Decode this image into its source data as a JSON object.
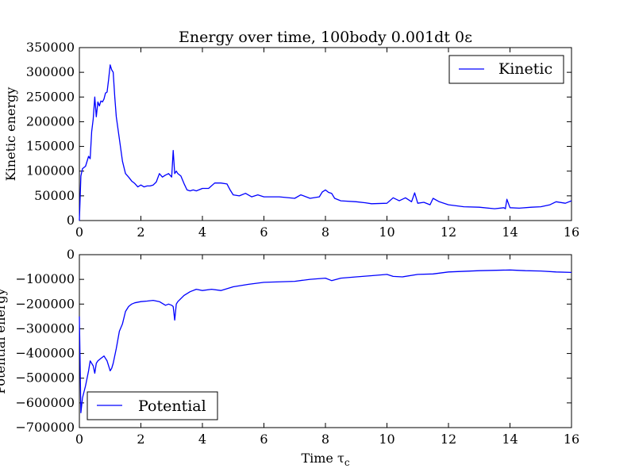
{
  "chart_data": [
    {
      "type": "line",
      "title": "Energy over time, 100body 0.001dt 0ε",
      "xlabel": "",
      "ylabel": "Kinetic energy",
      "xlim": [
        0,
        16
      ],
      "ylim": [
        0,
        350000
      ],
      "x_ticks": [
        "0",
        "2",
        "4",
        "6",
        "8",
        "10",
        "12",
        "14",
        "16"
      ],
      "y_ticks": [
        "0",
        "50000",
        "100000",
        "150000",
        "200000",
        "250000",
        "300000",
        "350000"
      ],
      "legend_position": "top-right",
      "color": "#0000ff",
      "series": [
        {
          "name": "Kinetic",
          "x": [
            0,
            0.05,
            0.1,
            0.2,
            0.3,
            0.35,
            0.4,
            0.45,
            0.5,
            0.55,
            0.6,
            0.65,
            0.7,
            0.75,
            0.8,
            0.85,
            0.9,
            0.95,
            1.0,
            1.05,
            1.1,
            1.15,
            1.2,
            1.3,
            1.4,
            1.5,
            1.6,
            1.7,
            1.8,
            1.9,
            2.0,
            2.1,
            2.2,
            2.3,
            2.4,
            2.5,
            2.6,
            2.7,
            2.8,
            2.9,
            3.0,
            3.05,
            3.1,
            3.15,
            3.2,
            3.3,
            3.4,
            3.5,
            3.6,
            3.7,
            3.8,
            4.0,
            4.2,
            4.4,
            4.6,
            4.8,
            4.9,
            5.0,
            5.2,
            5.4,
            5.6,
            5.8,
            6.0,
            6.5,
            7.0,
            7.2,
            7.5,
            7.8,
            7.9,
            8.0,
            8.1,
            8.2,
            8.3,
            8.5,
            9.0,
            9.3,
            9.5,
            10.0,
            10.2,
            10.4,
            10.6,
            10.8,
            10.9,
            11.0,
            11.2,
            11.4,
            11.5,
            11.7,
            12.0,
            12.5,
            13.0,
            13.5,
            13.8,
            13.85,
            13.9,
            14.0,
            14.3,
            14.7,
            15.0,
            15.3,
            15.5,
            15.8,
            16.0
          ],
          "y": [
            0,
            90000,
            105000,
            110000,
            130000,
            125000,
            180000,
            205000,
            250000,
            210000,
            240000,
            232000,
            242000,
            240000,
            246000,
            258000,
            260000,
            285000,
            315000,
            305000,
            300000,
            250000,
            210000,
            165000,
            120000,
            95000,
            88000,
            80000,
            75000,
            68000,
            72000,
            68000,
            70000,
            70000,
            72000,
            78000,
            95000,
            88000,
            92000,
            95000,
            88000,
            142000,
            95000,
            100000,
            95000,
            90000,
            75000,
            62000,
            60000,
            62000,
            60000,
            65000,
            65000,
            76000,
            76000,
            74000,
            62000,
            52000,
            50000,
            55000,
            48000,
            52000,
            48000,
            48000,
            45000,
            52000,
            45000,
            48000,
            58000,
            62000,
            57000,
            55000,
            45000,
            40000,
            38000,
            36000,
            34000,
            35000,
            46000,
            40000,
            46000,
            38000,
            56000,
            35000,
            37000,
            32000,
            45000,
            38000,
            32000,
            28000,
            27000,
            24000,
            26000,
            24000,
            43000,
            26000,
            25000,
            27000,
            28000,
            32000,
            38000,
            35000,
            40000
          ]
        }
      ]
    },
    {
      "type": "line",
      "title": "",
      "xlabel": "Time τ",
      "xlabel_subscript": "c",
      "ylabel": "Potential energy",
      "xlim": [
        0,
        16
      ],
      "ylim": [
        -700000,
        0
      ],
      "x_ticks": [
        "0",
        "2",
        "4",
        "6",
        "8",
        "10",
        "12",
        "14",
        "16"
      ],
      "y_ticks": [
        "0",
        "−100000",
        "−200000",
        "−300000",
        "−400000",
        "−500000",
        "−600000",
        "−700000"
      ],
      "legend_position": "bottom-left",
      "color": "#0000ff",
      "series": [
        {
          "name": "Potential",
          "x": [
            0,
            0.05,
            0.1,
            0.2,
            0.3,
            0.35,
            0.4,
            0.45,
            0.5,
            0.55,
            0.6,
            0.7,
            0.8,
            0.9,
            1.0,
            1.05,
            1.1,
            1.2,
            1.3,
            1.4,
            1.5,
            1.6,
            1.7,
            1.8,
            2.0,
            2.2,
            2.4,
            2.6,
            2.8,
            2.9,
            3.0,
            3.05,
            3.1,
            3.15,
            3.2,
            3.4,
            3.6,
            3.8,
            4.0,
            4.3,
            4.6,
            5.0,
            5.5,
            6.0,
            7.0,
            7.5,
            8.0,
            8.2,
            8.5,
            9.0,
            9.5,
            10.0,
            10.2,
            10.5,
            11.0,
            11.5,
            12.0,
            13.0,
            14.0,
            14.5,
            15.0,
            15.5,
            16.0
          ],
          "y": [
            -250000,
            -640000,
            -580000,
            -530000,
            -470000,
            -430000,
            -440000,
            -450000,
            -480000,
            -440000,
            -430000,
            -420000,
            -410000,
            -430000,
            -470000,
            -460000,
            -440000,
            -380000,
            -310000,
            -280000,
            -230000,
            -210000,
            -200000,
            -195000,
            -190000,
            -188000,
            -185000,
            -190000,
            -205000,
            -200000,
            -205000,
            -210000,
            -265000,
            -200000,
            -190000,
            -165000,
            -150000,
            -140000,
            -145000,
            -140000,
            -145000,
            -130000,
            -120000,
            -112000,
            -108000,
            -100000,
            -95000,
            -105000,
            -95000,
            -90000,
            -85000,
            -80000,
            -88000,
            -90000,
            -80000,
            -78000,
            -70000,
            -65000,
            -62000,
            -65000,
            -66000,
            -70000,
            -72000
          ]
        }
      ]
    }
  ]
}
